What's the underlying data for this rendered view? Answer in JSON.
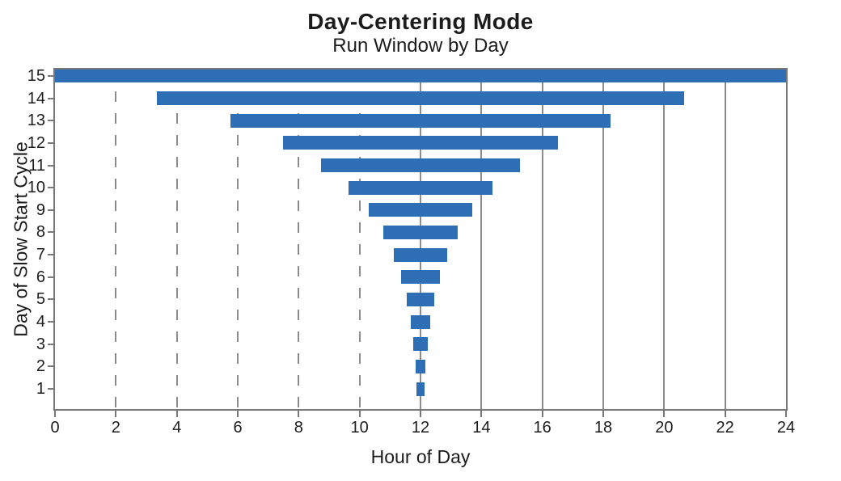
{
  "chart_data": {
    "type": "bar",
    "subtype": "horizontal-centered-range",
    "title": "Day-Centering Mode",
    "subtitle": "Run Window by Day",
    "xlabel": "Hour of Day",
    "ylabel": "Day of Slow Start Cycle",
    "xlim": [
      0,
      24
    ],
    "center_hour": 12,
    "x_ticks": [
      0,
      2,
      4,
      6,
      8,
      10,
      12,
      14,
      16,
      18,
      20,
      22,
      24
    ],
    "y_ticks": [
      1,
      2,
      3,
      4,
      5,
      6,
      7,
      8,
      9,
      10,
      11,
      12,
      13,
      14,
      15
    ],
    "grid": {
      "dashed_hours": [
        2,
        4,
        6,
        8,
        10
      ],
      "solid_hours": [
        12,
        14,
        16,
        18,
        20,
        22
      ]
    },
    "legend": null,
    "series": [
      {
        "name": "Run Window",
        "bars": [
          {
            "day": 1,
            "start": 11.875,
            "end": 12.125
          },
          {
            "day": 2,
            "start": 11.83,
            "end": 12.17
          },
          {
            "day": 3,
            "start": 11.76,
            "end": 12.24
          },
          {
            "day": 4,
            "start": 11.67,
            "end": 12.33
          },
          {
            "day": 5,
            "start": 11.54,
            "end": 12.46
          },
          {
            "day": 6,
            "start": 11.36,
            "end": 12.64
          },
          {
            "day": 7,
            "start": 11.12,
            "end": 12.88
          },
          {
            "day": 8,
            "start": 10.78,
            "end": 13.22
          },
          {
            "day": 9,
            "start": 10.3,
            "end": 13.7
          },
          {
            "day": 10,
            "start": 9.65,
            "end": 14.35
          },
          {
            "day": 11,
            "start": 8.74,
            "end": 15.26
          },
          {
            "day": 12,
            "start": 7.49,
            "end": 16.51
          },
          {
            "day": 13,
            "start": 5.75,
            "end": 18.25
          },
          {
            "day": 14,
            "start": 3.34,
            "end": 20.66
          },
          {
            "day": 15,
            "start": 0.0,
            "end": 24.0
          }
        ]
      }
    ],
    "colors": {
      "bar": "#2e6eb4",
      "grid": "#8c8c8c",
      "spine": "#787878",
      "text": "#1c1c1c",
      "background": "#ffffff"
    }
  }
}
